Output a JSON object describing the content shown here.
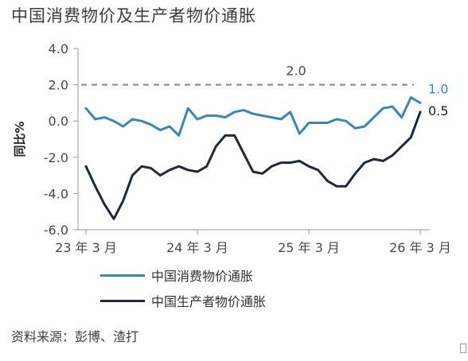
{
  "title": "中国消费物价及生产者物价通胀",
  "source": "资料来源：彭博、渣打",
  "colors": {
    "cpi": "#3a87b6",
    "ppi": "#1c2a3c",
    "reference": "#888888",
    "axis": "#9a9a9a"
  },
  "chart_data": {
    "type": "line",
    "title": "中国消费物价及生产者物价通胀",
    "ylabel": "同比%",
    "xlabel": "",
    "ylim": [
      -6.0,
      4.0
    ],
    "yticks": [
      "4.0",
      "2.0",
      "0.0",
      "-2.0",
      "-4.0",
      "-6.0"
    ],
    "ytick_values": [
      4,
      2,
      0,
      -2,
      -4,
      -6
    ],
    "xtick_labels": [
      "23 年 3 月",
      "24 年 3 月",
      "25 年 3 月",
      "26 年 3 月"
    ],
    "xtick_index": [
      0,
      12,
      24,
      36
    ],
    "grid": false,
    "legend_position": "bottom",
    "reference_line": {
      "value": 2.0,
      "label": "2.0",
      "style": "dashed"
    },
    "end_labels": {
      "cpi": "1.0",
      "ppi": "0.5"
    },
    "series": [
      {
        "name": "中国消费物价通胀",
        "key": "cpi",
        "values": [
          0.7,
          0.1,
          0.2,
          0.0,
          -0.3,
          0.1,
          0.0,
          -0.2,
          -0.5,
          -0.3,
          -0.8,
          0.7,
          0.1,
          0.3,
          0.3,
          0.2,
          0.5,
          0.6,
          0.4,
          0.3,
          0.2,
          0.1,
          0.5,
          -0.7,
          -0.1,
          -0.1,
          -0.1,
          0.1,
          0.0,
          -0.4,
          -0.3,
          0.2,
          0.7,
          0.8,
          0.2,
          1.3,
          1.0
        ]
      },
      {
        "name": "中国生产者物价通胀",
        "key": "ppi",
        "values": [
          -2.5,
          -3.6,
          -4.6,
          -5.4,
          -4.4,
          -3.0,
          -2.5,
          -2.6,
          -3.0,
          -2.7,
          -2.5,
          -2.7,
          -2.8,
          -2.5,
          -1.4,
          -0.8,
          -0.8,
          -1.8,
          -2.8,
          -2.9,
          -2.5,
          -2.3,
          -2.3,
          -2.2,
          -2.5,
          -2.7,
          -3.3,
          -3.6,
          -3.6,
          -2.9,
          -2.3,
          -2.1,
          -2.2,
          -1.9,
          -1.4,
          -0.9,
          0.5
        ]
      }
    ]
  }
}
